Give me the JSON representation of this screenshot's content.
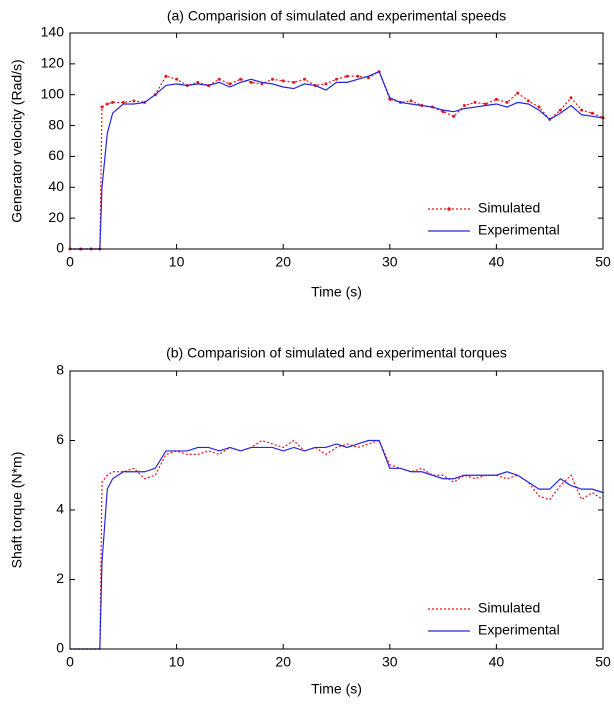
{
  "chart_data": [
    {
      "type": "line",
      "title": "(a) Comparision of simulated and experimental speeds",
      "x_label": "Time (s)",
      "y_label": "Generator velocity (Rad/s)",
      "x": [
        0,
        1,
        2,
        2.8,
        3,
        3.5,
        4,
        5,
        6,
        7,
        8,
        9,
        10,
        11,
        12,
        13,
        14,
        15,
        16,
        17,
        18,
        19,
        20,
        21,
        22,
        23,
        24,
        25,
        26,
        27,
        28,
        29,
        30,
        31,
        32,
        33,
        34,
        35,
        36,
        37,
        38,
        39,
        40,
        41,
        42,
        43,
        44,
        45,
        46,
        47,
        48,
        49,
        50
      ],
      "series": [
        {
          "name": "Simulated",
          "color": "#e8141e",
          "line_style": "dotted",
          "marker": "point",
          "values": [
            0,
            0,
            0,
            0,
            92,
            94,
            95,
            95,
            96,
            95,
            100,
            112,
            110,
            106,
            108,
            106,
            110,
            107,
            110,
            108,
            107,
            110,
            109,
            108,
            110,
            106,
            107,
            110,
            112,
            112,
            111,
            115,
            97,
            95,
            96,
            93,
            92,
            89,
            86,
            93,
            95,
            94,
            97,
            95,
            101,
            96,
            92,
            84,
            90,
            98,
            90,
            88,
            85
          ]
        },
        {
          "name": "Experimental",
          "color": "#2626d9",
          "line_style": "solid",
          "values": [
            0,
            0,
            0,
            0,
            40,
            75,
            88,
            94,
            94,
            95,
            100,
            106,
            107,
            106,
            107,
            106,
            108,
            105,
            108,
            110,
            108,
            107,
            105,
            104,
            107,
            106,
            103,
            108,
            108,
            110,
            112,
            115,
            98,
            95,
            94,
            93,
            92,
            90,
            89,
            91,
            92,
            93,
            94,
            92,
            95,
            94,
            90,
            84,
            88,
            93,
            87,
            86,
            85
          ]
        }
      ],
      "xlim": [
        0,
        50
      ],
      "ylim": [
        0,
        140
      ],
      "xticks": [
        0,
        10,
        20,
        30,
        40,
        50
      ],
      "yticks": [
        0,
        20,
        40,
        60,
        80,
        100,
        120,
        140
      ],
      "legend": "lower right"
    },
    {
      "type": "line",
      "title": "(b) Comparision of simulated and experimental torques",
      "x_label": "Time (s)",
      "y_label": "Shaft torque (N*m)",
      "x": [
        0,
        1,
        2,
        2.8,
        3,
        3.5,
        4,
        5,
        6,
        7,
        8,
        9,
        10,
        11,
        12,
        13,
        14,
        15,
        16,
        17,
        18,
        19,
        20,
        21,
        22,
        23,
        24,
        25,
        26,
        27,
        28,
        29,
        30,
        31,
        32,
        33,
        34,
        35,
        36,
        37,
        38,
        39,
        40,
        41,
        42,
        43,
        44,
        45,
        46,
        47,
        48,
        49,
        50
      ],
      "series": [
        {
          "name": "Simulated",
          "color": "#e8141e",
          "line_style": "dotted",
          "values": [
            0,
            0,
            0,
            0,
            4.8,
            5.0,
            5.1,
            5.1,
            5.2,
            4.9,
            5.0,
            5.6,
            5.7,
            5.6,
            5.6,
            5.7,
            5.6,
            5.8,
            5.7,
            5.8,
            6.0,
            5.9,
            5.8,
            6.0,
            5.7,
            5.8,
            5.6,
            5.8,
            5.9,
            5.8,
            5.9,
            6.0,
            5.3,
            5.2,
            5.1,
            5.2,
            5.0,
            5.0,
            4.8,
            5.0,
            4.9,
            5.0,
            5.0,
            4.9,
            5.0,
            4.8,
            4.4,
            4.3,
            4.7,
            5.0,
            4.3,
            4.5,
            4.3
          ]
        },
        {
          "name": "Experimental",
          "color": "#2626d9",
          "line_style": "solid",
          "values": [
            0,
            0,
            0,
            0,
            2.5,
            4.6,
            4.9,
            5.1,
            5.1,
            5.1,
            5.2,
            5.7,
            5.7,
            5.7,
            5.8,
            5.8,
            5.7,
            5.8,
            5.7,
            5.8,
            5.8,
            5.8,
            5.7,
            5.8,
            5.7,
            5.8,
            5.8,
            5.9,
            5.8,
            5.9,
            6.0,
            6.0,
            5.2,
            5.2,
            5.1,
            5.1,
            5.0,
            4.9,
            4.9,
            5.0,
            5.0,
            5.0,
            5.0,
            5.1,
            5.0,
            4.8,
            4.6,
            4.6,
            4.9,
            4.7,
            4.6,
            4.6,
            4.5
          ]
        }
      ],
      "xlim": [
        0,
        50
      ],
      "ylim": [
        0,
        8
      ],
      "xticks": [
        0,
        10,
        20,
        30,
        40,
        50
      ],
      "yticks": [
        0,
        2,
        4,
        6,
        8
      ],
      "legend": "lower right"
    }
  ]
}
